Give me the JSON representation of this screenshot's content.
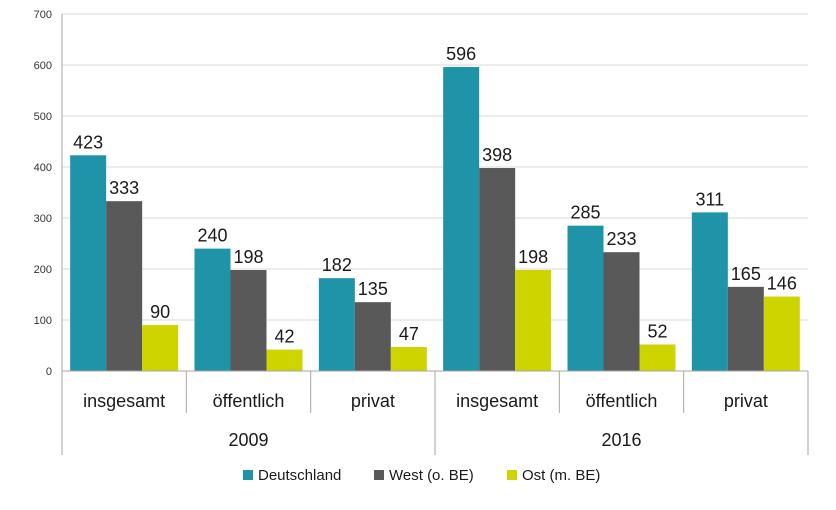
{
  "chart_data": {
    "type": "bar",
    "ylim": [
      0,
      700
    ],
    "yticks": [
      0,
      100,
      200,
      300,
      400,
      500,
      600,
      700
    ],
    "grid": true,
    "legend_position": "bottom",
    "categories": [
      "insgesamt",
      "öffentlich",
      "privat",
      "insgesamt",
      "öffentlich",
      "privat"
    ],
    "groups": [
      {
        "label": "2009",
        "categories": [
          0,
          1,
          2
        ]
      },
      {
        "label": "2016",
        "categories": [
          3,
          4,
          5
        ]
      }
    ],
    "series": [
      {
        "name": "Deutschland",
        "color": "#1f93a8",
        "values": [
          423,
          240,
          182,
          596,
          285,
          311
        ]
      },
      {
        "name": "West (o. BE)",
        "color": "#595959",
        "values": [
          333,
          198,
          135,
          398,
          233,
          165
        ]
      },
      {
        "name": "Ost (m. BE)",
        "color": "#cdd400",
        "values": [
          90,
          42,
          47,
          198,
          52,
          146
        ]
      }
    ]
  }
}
